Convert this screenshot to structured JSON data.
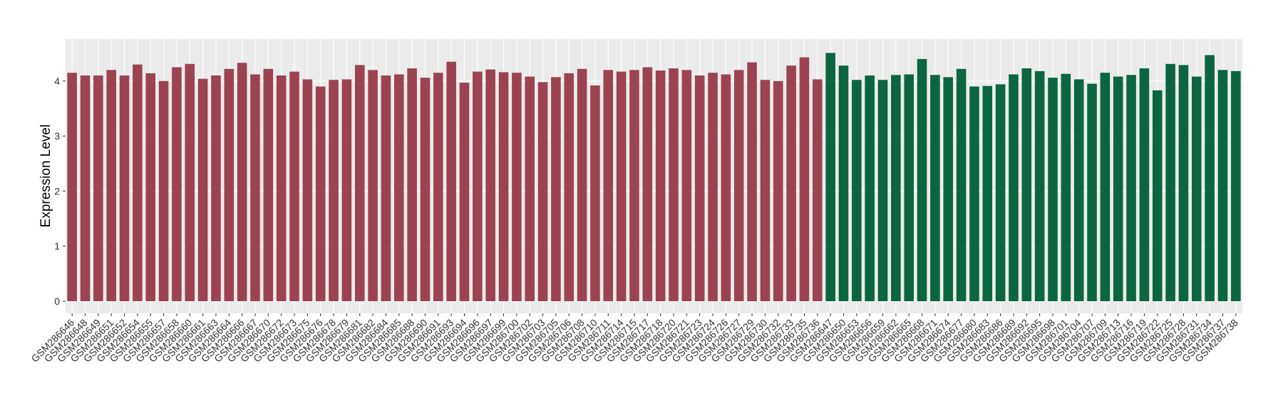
{
  "chart_data": {
    "type": "bar",
    "y_label": "Expression Level",
    "categories": [
      "GSM286646",
      "GSM286648",
      "GSM286649",
      "GSM286651",
      "GSM286652",
      "GSM286654",
      "GSM286655",
      "GSM286657",
      "GSM286658",
      "GSM286660",
      "GSM286661",
      "GSM286663",
      "GSM286664",
      "GSM286666",
      "GSM286667",
      "GSM286670",
      "GSM286672",
      "GSM286673",
      "GSM286675",
      "GSM286676",
      "GSM286678",
      "GSM286679",
      "GSM286681",
      "GSM286682",
      "GSM286684",
      "GSM286685",
      "GSM286688",
      "GSM286690",
      "GSM286691",
      "GSM286693",
      "GSM286694",
      "GSM286696",
      "GSM286697",
      "GSM286699",
      "GSM286700",
      "GSM286702",
      "GSM286703",
      "GSM286705",
      "GSM286706",
      "GSM286708",
      "GSM286710",
      "GSM286711",
      "GSM286714",
      "GSM286715",
      "GSM286717",
      "GSM286718",
      "GSM286720",
      "GSM286721",
      "GSM286723",
      "GSM286724",
      "GSM286726",
      "GSM286727",
      "GSM286729",
      "GSM286730",
      "GSM286732",
      "GSM286733",
      "GSM286735",
      "GSM286736",
      "GSM286647",
      "GSM286650",
      "GSM286653",
      "GSM286656",
      "GSM286659",
      "GSM286662",
      "GSM286665",
      "GSM286668",
      "GSM286671",
      "GSM286674",
      "GSM286677",
      "GSM286680",
      "GSM286683",
      "GSM286686",
      "GSM286689",
      "GSM286692",
      "GSM286695",
      "GSM286698",
      "GSM286701",
      "GSM286704",
      "GSM286707",
      "GSM286709",
      "GSM286713",
      "GSM286716",
      "GSM286719",
      "GSM286722",
      "GSM286725",
      "GSM286728",
      "GSM286731",
      "GSM286734",
      "GSM286737",
      "GSM286738"
    ],
    "values": [
      4.15,
      4.1,
      4.1,
      4.2,
      4.1,
      4.3,
      4.14,
      4.0,
      4.25,
      4.31,
      4.04,
      4.1,
      4.22,
      4.33,
      4.12,
      4.22,
      4.1,
      4.17,
      4.03,
      3.9,
      4.02,
      4.03,
      4.29,
      4.2,
      4.1,
      4.12,
      4.23,
      4.06,
      4.15,
      4.35,
      3.97,
      4.17,
      4.21,
      4.16,
      4.15,
      4.08,
      3.98,
      4.07,
      4.14,
      4.22,
      3.92,
      4.2,
      4.17,
      4.2,
      4.25,
      4.19,
      4.23,
      4.2,
      4.1,
      4.15,
      4.12,
      4.2,
      4.34,
      4.02,
      4.0,
      4.28,
      4.43,
      4.03,
      4.51,
      4.28,
      4.02,
      4.1,
      4.02,
      4.11,
      4.12,
      4.4,
      4.11,
      4.07,
      4.22,
      3.9,
      3.91,
      3.94,
      4.12,
      4.23,
      4.18,
      4.06,
      4.13,
      4.03,
      3.95,
      4.15,
      4.08,
      4.11,
      4.23,
      3.83,
      4.31,
      4.29,
      4.08,
      4.47,
      4.2,
      4.18
    ],
    "bar_colors": [
      "#9c4352",
      "#9c4352",
      "#9c4352",
      "#9c4352",
      "#9c4352",
      "#9c4352",
      "#9c4352",
      "#9c4352",
      "#9c4352",
      "#9c4352",
      "#9c4352",
      "#9c4352",
      "#9c4352",
      "#9c4352",
      "#9c4352",
      "#9c4352",
      "#9c4352",
      "#9c4352",
      "#9c4352",
      "#9c4352",
      "#9c4352",
      "#9c4352",
      "#9c4352",
      "#9c4352",
      "#9c4352",
      "#9c4352",
      "#9c4352",
      "#9c4352",
      "#9c4352",
      "#9c4352",
      "#9c4352",
      "#9c4352",
      "#9c4352",
      "#9c4352",
      "#9c4352",
      "#9c4352",
      "#9c4352",
      "#9c4352",
      "#9c4352",
      "#9c4352",
      "#9c4352",
      "#9c4352",
      "#9c4352",
      "#9c4352",
      "#9c4352",
      "#9c4352",
      "#9c4352",
      "#9c4352",
      "#9c4352",
      "#9c4352",
      "#9c4352",
      "#9c4352",
      "#9c4352",
      "#9c4352",
      "#9c4352",
      "#9c4352",
      "#9c4352",
      "#9c4352",
      "#0b6640",
      "#0b6640",
      "#0b6640",
      "#0b6640",
      "#0b6640",
      "#0b6640",
      "#0b6640",
      "#0b6640",
      "#0b6640",
      "#0b6640",
      "#0b6640",
      "#0b6640",
      "#0b6640",
      "#0b6640",
      "#0b6640",
      "#0b6640",
      "#0b6640",
      "#0b6640",
      "#0b6640",
      "#0b6640",
      "#0b6640",
      "#0b6640",
      "#0b6640",
      "#0b6640",
      "#0b6640",
      "#0b6640",
      "#0b6640",
      "#0b6640",
      "#0b6640",
      "#0b6640",
      "#0b6640",
      "#0b6640"
    ],
    "ylim": [
      -0.22,
      4.76
    ],
    "yticks": [
      0,
      1,
      2,
      3,
      4
    ],
    "grid": true
  }
}
